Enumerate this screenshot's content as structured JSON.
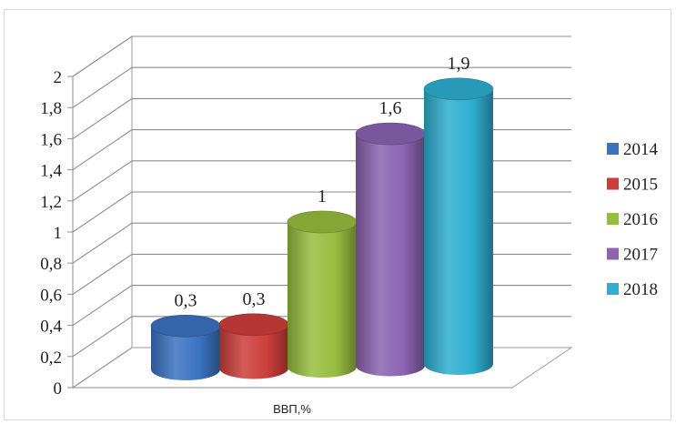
{
  "chart_data": {
    "type": "bar",
    "title": "",
    "categories": [
      "ВВП,%"
    ],
    "series": [
      {
        "name": "2014",
        "values": [
          0.3
        ],
        "label": "0,3",
        "color": "#3b73c2"
      },
      {
        "name": "2015",
        "values": [
          0.3
        ],
        "label": "0,3",
        "color": "#cc3e3b"
      },
      {
        "name": "2016",
        "values": [
          1.0
        ],
        "label": "1",
        "color": "#97bd3f"
      },
      {
        "name": "2017",
        "values": [
          1.6
        ],
        "label": "1,6",
        "color": "#8b63b1"
      },
      {
        "name": "2018",
        "values": [
          1.9
        ],
        "label": "1,9",
        "color": "#2eaed0"
      }
    ],
    "xlabel": "",
    "ylabel": "",
    "ylim": [
      0,
      2
    ],
    "yticks": [
      0,
      0.2,
      0.4,
      0.6,
      0.8,
      1,
      1.2,
      1.4,
      1.6,
      1.8,
      2
    ],
    "ytick_labels": [
      "0",
      "0,2",
      "0,4",
      "0,6",
      "0,8",
      "1",
      "1,2",
      "1,4",
      "1,6",
      "1,8",
      "2"
    ],
    "grid": true,
    "legend_position": "right",
    "style": "3d-cylinder"
  }
}
